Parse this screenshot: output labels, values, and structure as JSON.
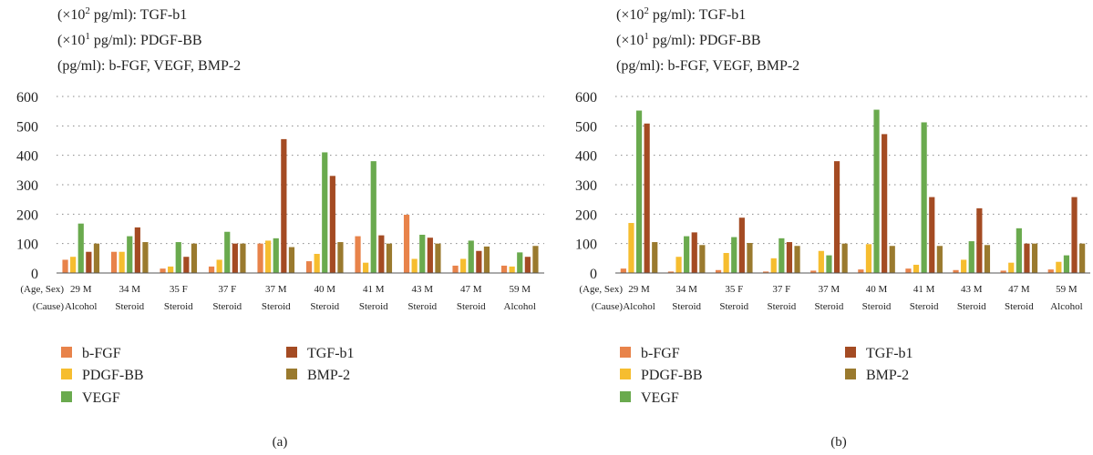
{
  "chart_data": [
    {
      "type": "bar",
      "panel_label": "(a)",
      "notes": [
        {
          "prefix": "(×10",
          "sup": "2",
          "suffix": " pg/ml): TGF-b1"
        },
        {
          "prefix": "(×10",
          "sup": "1",
          "suffix": " pg/ml): PDGF-BB"
        },
        {
          "prefix": "(pg/ml): b-FGF, VEGF, BMP-2",
          "sup": "",
          "suffix": ""
        }
      ],
      "row_labels": [
        "(Age, Sex)",
        "(Cause)"
      ],
      "categories": [
        {
          "age_sex": "29 M",
          "cause": "Alcohol"
        },
        {
          "age_sex": "34 M",
          "cause": "Steroid"
        },
        {
          "age_sex": "35 F",
          "cause": "Steroid"
        },
        {
          "age_sex": "37 F",
          "cause": "Steroid"
        },
        {
          "age_sex": "37 M",
          "cause": "Steroid"
        },
        {
          "age_sex": "40 M",
          "cause": "Steroid"
        },
        {
          "age_sex": "41 M",
          "cause": "Steroid"
        },
        {
          "age_sex": "43 M",
          "cause": "Steroid"
        },
        {
          "age_sex": "47 M",
          "cause": "Steroid"
        },
        {
          "age_sex": "59 M",
          "cause": "Alcohol"
        }
      ],
      "yticks": [
        "0",
        "100",
        "200",
        "300",
        "400",
        "500",
        "600"
      ],
      "ylim": [
        0,
        600
      ],
      "grid": "dotted horizontal",
      "series": [
        {
          "name": "b-FGF",
          "color": "#e8834a",
          "values": [
            45,
            72,
            15,
            22,
            100,
            40,
            125,
            198,
            25,
            25
          ]
        },
        {
          "name": "PDGF-BB",
          "color": "#f6bd2f",
          "values": [
            55,
            72,
            22,
            45,
            110,
            65,
            35,
            48,
            48,
            22
          ]
        },
        {
          "name": "VEGF",
          "color": "#6aaa4e",
          "values": [
            168,
            125,
            105,
            140,
            118,
            410,
            380,
            130,
            110,
            70
          ]
        },
        {
          "name": "TGF-b1",
          "color": "#a44b23",
          "values": [
            72,
            155,
            55,
            100,
            455,
            330,
            128,
            120,
            75,
            55
          ]
        },
        {
          "name": "BMP-2",
          "color": "#9a7a2e",
          "values": [
            100,
            105,
            100,
            100,
            88,
            105,
            100,
            100,
            90,
            92
          ]
        }
      ]
    },
    {
      "type": "bar",
      "panel_label": "(b)",
      "notes": [
        {
          "prefix": "(×10",
          "sup": "2",
          "suffix": " pg/ml): TGF-b1"
        },
        {
          "prefix": "(×10",
          "sup": "1",
          "suffix": " pg/ml): PDGF-BB"
        },
        {
          "prefix": "(pg/ml): b-FGF, VEGF, BMP-2",
          "sup": "",
          "suffix": ""
        }
      ],
      "row_labels": [
        "(Age, Sex)",
        "(Cause)"
      ],
      "categories": [
        {
          "age_sex": "29 M",
          "cause": "Alcohol"
        },
        {
          "age_sex": "34 M",
          "cause": "Steroid"
        },
        {
          "age_sex": "35 F",
          "cause": "Steroid"
        },
        {
          "age_sex": "37 F",
          "cause": "Steroid"
        },
        {
          "age_sex": "37 M",
          "cause": "Steroid"
        },
        {
          "age_sex": "40 M",
          "cause": "Steroid"
        },
        {
          "age_sex": "41 M",
          "cause": "Steroid"
        },
        {
          "age_sex": "43 M",
          "cause": "Steroid"
        },
        {
          "age_sex": "47 M",
          "cause": "Steroid"
        },
        {
          "age_sex": "59 M",
          "cause": "Alcohol"
        }
      ],
      "yticks": [
        "0",
        "100",
        "200",
        "300",
        "400",
        "500",
        "600"
      ],
      "ylim": [
        0,
        600
      ],
      "grid": "dotted horizontal",
      "series": [
        {
          "name": "b-FGF",
          "color": "#e8834a",
          "values": [
            15,
            5,
            10,
            5,
            8,
            12,
            15,
            10,
            8,
            12
          ]
        },
        {
          "name": "PDGF-BB",
          "color": "#f6bd2f",
          "values": [
            170,
            55,
            68,
            50,
            75,
            98,
            28,
            45,
            35,
            38
          ]
        },
        {
          "name": "VEGF",
          "color": "#6aaa4e",
          "values": [
            552,
            125,
            122,
            118,
            60,
            555,
            512,
            108,
            152,
            60
          ]
        },
        {
          "name": "TGF-b1",
          "color": "#a44b23",
          "values": [
            508,
            138,
            188,
            105,
            380,
            472,
            258,
            220,
            100,
            258
          ]
        },
        {
          "name": "BMP-2",
          "color": "#9a7a2e",
          "values": [
            105,
            95,
            102,
            92,
            100,
            92,
            92,
            95,
            100,
            100
          ]
        }
      ]
    }
  ]
}
